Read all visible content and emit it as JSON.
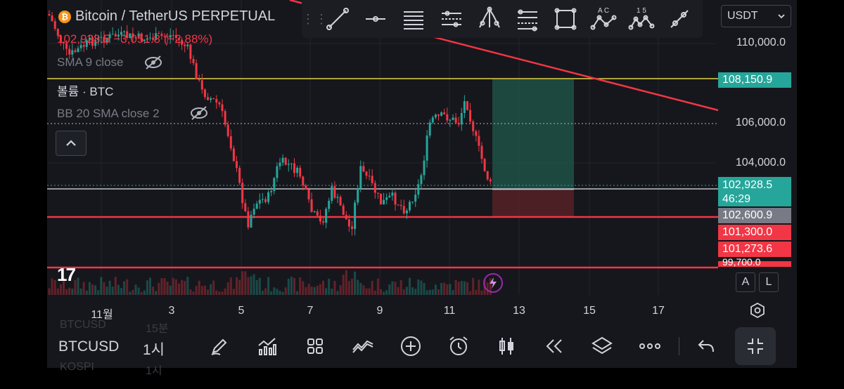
{
  "header": {
    "symbol_title": "Bitcoin / TetherUS PERPETUAL",
    "coin_glyph": "₿",
    "ohlc_line": "102,928.5 −3,051.8 (−2.88%)",
    "currency": "USDT"
  },
  "indicators": [
    {
      "label": "SMA 9 close",
      "hidden": true
    },
    {
      "label": "볼륨 · BTC",
      "hidden": false
    },
    {
      "label": "BB 20 SMA close 2",
      "hidden": true
    }
  ],
  "drawing_tools": [
    "trend-line-icon",
    "horizontal-ray-icon",
    "parallel-channel-icon",
    "regression-trend-icon",
    "pitchfork-icon",
    "fib-retracement-icon",
    "rectangle-icon",
    "abcd-pattern-icon",
    "elliott-wave-icon",
    "brush-icon"
  ],
  "tool_labels": {
    "abcd": "A  C",
    "elliott": "1   5"
  },
  "price_axis": {
    "ticks": [
      "110,000.0",
      "106,000.0",
      "104,000.0"
    ],
    "tags": [
      {
        "text": "108,150.9",
        "color": "#26a69a"
      },
      {
        "text": "102,928.5",
        "sub": "46:29",
        "color": "#26a69a"
      },
      {
        "text": "102,600.9",
        "color": "#787b86"
      },
      {
        "text": "101,300.0",
        "color": "#f23645"
      },
      {
        "text": "101,273.6",
        "color": "#f23645"
      },
      {
        "text": "99,700.0",
        "color": "#f23645"
      }
    ]
  },
  "time_axis": [
    "11월",
    "3",
    "5",
    "7",
    "9",
    "11",
    "13",
    "15",
    "17"
  ],
  "axis_buttons": {
    "auto": "A",
    "log": "L"
  },
  "bottom_bar": {
    "symbol": "BTCUSD",
    "timeframe": "1시",
    "ghost_symbol": "BTCUSD",
    "ghost_timeframe": "15분",
    "ghost_symbol2": "KOSPI",
    "ghost_timeframe2": "1시",
    "icons": [
      "drawing-pen-icon",
      "indicators-icon",
      "layouts-icon",
      "compare-icon",
      "add-icon",
      "alert-clock-icon",
      "candle-type-icon",
      "replay-icon",
      "layers-icon",
      "more-icon",
      "undo-icon",
      "fullscreen-exit-icon"
    ]
  },
  "logo_text": "17",
  "colors": {
    "up": "#26a69a",
    "down": "#f23645",
    "yellow": "#e0d34a",
    "bg": "#16171c"
  }
}
